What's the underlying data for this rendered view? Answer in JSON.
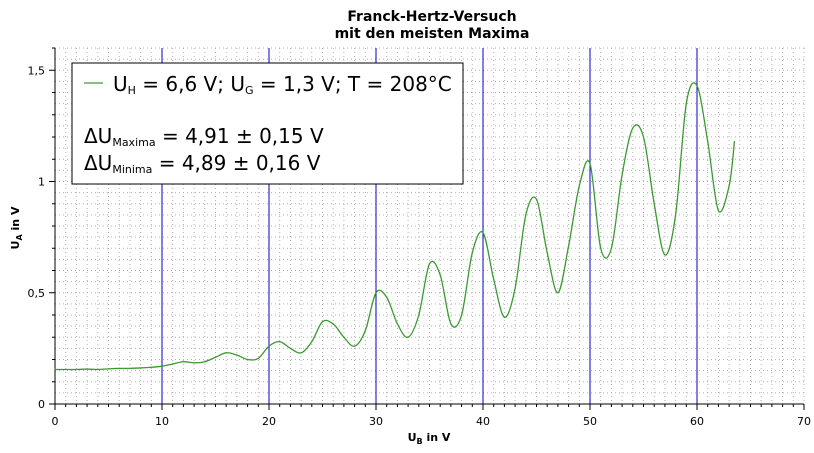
{
  "chart_data": {
    "type": "line",
    "title": "Franck-Hertz-Versuch",
    "subtitle": "mit den meisten Maxima",
    "xlabel": {
      "main": "U",
      "sub": "B",
      "unit": " in V"
    },
    "ylabel": {
      "main": "U",
      "sub": "A",
      "unit": " in V"
    },
    "xlim": [
      0,
      70
    ],
    "ylim": [
      0,
      1.6
    ],
    "x_ticks": [
      "0",
      "10",
      "20",
      "30",
      "40",
      "50",
      "60",
      "70"
    ],
    "y_ticks": [
      "0",
      "0,5",
      "1",
      "1,5"
    ],
    "grid": true,
    "marker_lines_x": [
      10,
      20,
      30,
      40,
      50,
      60
    ],
    "colors": {
      "series": "#3a9a30",
      "marker_lines": "#0000cc",
      "grid": "#b0b0b0"
    },
    "legend": {
      "placement": "top-left",
      "line1": [
        {
          "t": "U",
          "s": false
        },
        {
          "t": "H",
          "s": true
        },
        {
          "t": " = 6,6 V; U",
          "s": false
        },
        {
          "t": "G",
          "s": true
        },
        {
          "t": " = 1,3 V; T = 208°C",
          "s": false
        }
      ],
      "line2": [
        {
          "t": "ΔU",
          "s": false
        },
        {
          "t": "Maxima",
          "s": true
        },
        {
          "t": " = 4,91 ± 0,15 V",
          "s": false
        }
      ],
      "line3": [
        {
          "t": "ΔU",
          "s": false
        },
        {
          "t": "Minima",
          "s": true
        },
        {
          "t": " = 4,89 ± 0,16 V",
          "s": false
        }
      ]
    },
    "series": [
      {
        "x": [
          0,
          1,
          2,
          3,
          4,
          5,
          6,
          7,
          8,
          9,
          10,
          11,
          12,
          13,
          14,
          15,
          16,
          17,
          18,
          19,
          20,
          21,
          22,
          23,
          24,
          25,
          26,
          27,
          28,
          29,
          30,
          31,
          32,
          33,
          34,
          35,
          36,
          37,
          38,
          39,
          40,
          41,
          42,
          43,
          44,
          45,
          46,
          47,
          48,
          49,
          50,
          51,
          52,
          53,
          54,
          55,
          56,
          57,
          58,
          59,
          60,
          61,
          62,
          63,
          63.5
        ],
        "y": [
          0.155,
          0.155,
          0.155,
          0.157,
          0.155,
          0.158,
          0.16,
          0.16,
          0.162,
          0.165,
          0.17,
          0.18,
          0.19,
          0.185,
          0.19,
          0.21,
          0.23,
          0.22,
          0.2,
          0.205,
          0.26,
          0.28,
          0.25,
          0.23,
          0.28,
          0.37,
          0.36,
          0.3,
          0.26,
          0.33,
          0.5,
          0.48,
          0.36,
          0.3,
          0.4,
          0.63,
          0.58,
          0.36,
          0.4,
          0.68,
          0.77,
          0.56,
          0.39,
          0.52,
          0.85,
          0.92,
          0.68,
          0.5,
          0.71,
          0.98,
          1.08,
          0.7,
          0.7,
          1.03,
          1.24,
          1.2,
          0.9,
          0.67,
          0.85,
          1.35,
          1.43,
          1.18,
          0.87,
          0.98,
          1.18
        ]
      }
    ]
  }
}
